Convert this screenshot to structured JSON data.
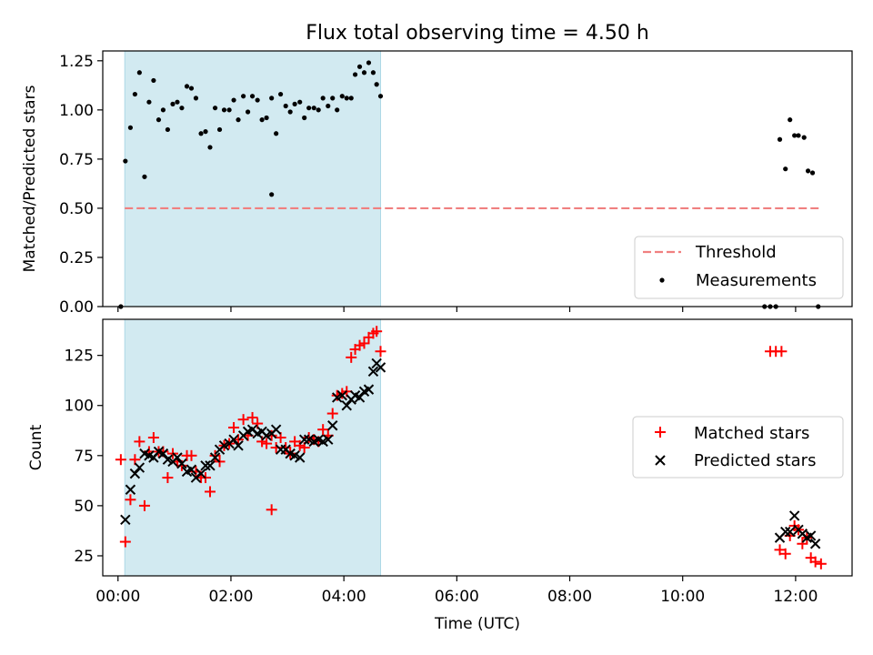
{
  "title": "Flux total observing time = 4.50 h",
  "colors": {
    "shade": "#add8e6",
    "threshold": "#f08080",
    "measurement": "#000000",
    "matched": "#ff0000",
    "predicted": "#000000"
  },
  "chart_data": [
    {
      "type": "scatter",
      "panel": "top",
      "ylabel": "Matched/Predicted stars",
      "xlim": [
        -0.27,
        13.0
      ],
      "ylim": [
        0.0,
        1.3
      ],
      "yticks": [
        0.0,
        0.25,
        0.5,
        0.75,
        1.0,
        1.25
      ],
      "ytick_labels": [
        "0.00",
        "0.25",
        "0.50",
        "0.75",
        "1.00",
        "1.25"
      ],
      "xticks": [
        0,
        2,
        4,
        6,
        8,
        10,
        12
      ],
      "shaded_region": [
        0.12,
        4.65
      ],
      "threshold": {
        "name": "Threshold",
        "value": 0.5,
        "x_range": [
          0.12,
          12.42
        ]
      },
      "legend": {
        "placement": "lower-right",
        "entries": [
          "Threshold",
          "Measurements"
        ]
      },
      "series": [
        {
          "name": "Measurements",
          "points": [
            [
              0.05,
              0.0
            ],
            [
              0.13,
              0.74
            ],
            [
              0.22,
              0.91
            ],
            [
              0.3,
              1.08
            ],
            [
              0.38,
              1.19
            ],
            [
              0.47,
              0.66
            ],
            [
              0.55,
              1.04
            ],
            [
              0.63,
              1.15
            ],
            [
              0.72,
              0.95
            ],
            [
              0.8,
              1.0
            ],
            [
              0.88,
              0.9
            ],
            [
              0.97,
              1.03
            ],
            [
              1.05,
              1.04
            ],
            [
              1.13,
              1.01
            ],
            [
              1.22,
              1.12
            ],
            [
              1.3,
              1.11
            ],
            [
              1.38,
              1.06
            ],
            [
              1.47,
              0.88
            ],
            [
              1.55,
              0.89
            ],
            [
              1.63,
              0.81
            ],
            [
              1.72,
              1.01
            ],
            [
              1.8,
              0.9
            ],
            [
              1.88,
              1.0
            ],
            [
              1.97,
              1.0
            ],
            [
              2.05,
              1.05
            ],
            [
              2.13,
              0.95
            ],
            [
              2.22,
              1.07
            ],
            [
              2.3,
              0.99
            ],
            [
              2.38,
              1.07
            ],
            [
              2.47,
              1.05
            ],
            [
              2.55,
              0.95
            ],
            [
              2.63,
              0.96
            ],
            [
              2.72,
              1.06
            ],
            [
              2.72,
              0.57
            ],
            [
              2.8,
              0.88
            ],
            [
              2.88,
              1.08
            ],
            [
              2.97,
              1.02
            ],
            [
              3.05,
              0.99
            ],
            [
              3.13,
              1.03
            ],
            [
              3.22,
              1.04
            ],
            [
              3.3,
              0.96
            ],
            [
              3.38,
              1.01
            ],
            [
              3.47,
              1.01
            ],
            [
              3.55,
              1.0
            ],
            [
              3.63,
              1.06
            ],
            [
              3.72,
              1.02
            ],
            [
              3.8,
              1.06
            ],
            [
              3.88,
              1.0
            ],
            [
              3.97,
              1.07
            ],
            [
              4.05,
              1.06
            ],
            [
              4.13,
              1.06
            ],
            [
              4.2,
              1.18
            ],
            [
              4.28,
              1.22
            ],
            [
              4.36,
              1.19
            ],
            [
              4.44,
              1.24
            ],
            [
              4.52,
              1.19
            ],
            [
              4.58,
              1.13
            ],
            [
              4.65,
              1.07
            ],
            [
              11.45,
              0.0
            ],
            [
              11.55,
              0.0
            ],
            [
              11.65,
              0.0
            ],
            [
              11.72,
              0.85
            ],
            [
              11.82,
              0.7
            ],
            [
              11.9,
              0.95
            ],
            [
              11.98,
              0.87
            ],
            [
              12.05,
              0.87
            ],
            [
              12.15,
              0.86
            ],
            [
              12.22,
              0.69
            ],
            [
              12.3,
              0.68
            ],
            [
              12.4,
              0.0
            ]
          ]
        }
      ]
    },
    {
      "type": "scatter",
      "panel": "bottom",
      "xlabel": "Time (UTC)",
      "ylabel": "Count",
      "xlim": [
        -0.27,
        13.0
      ],
      "ylim": [
        15,
        143
      ],
      "yticks": [
        25,
        50,
        75,
        100,
        125
      ],
      "ytick_labels": [
        "25",
        "50",
        "75",
        "100",
        "125"
      ],
      "xticks": [
        0,
        2,
        4,
        6,
        8,
        10,
        12
      ],
      "xtick_labels": [
        "00:00",
        "02:00",
        "04:00",
        "06:00",
        "08:00",
        "10:00",
        "12:00"
      ],
      "shaded_region": [
        0.12,
        4.65
      ],
      "legend": {
        "placement": "center-right",
        "entries": [
          "Matched stars",
          "Predicted stars"
        ]
      },
      "series": [
        {
          "name": "Matched stars",
          "marker": "plus",
          "points": [
            [
              0.05,
              73
            ],
            [
              0.13,
              32
            ],
            [
              0.22,
              53
            ],
            [
              0.3,
              73
            ],
            [
              0.38,
              82
            ],
            [
              0.47,
              50
            ],
            [
              0.55,
              77
            ],
            [
              0.63,
              84
            ],
            [
              0.72,
              77
            ],
            [
              0.8,
              77
            ],
            [
              0.88,
              64
            ],
            [
              0.97,
              76
            ],
            [
              1.05,
              72
            ],
            [
              1.13,
              70
            ],
            [
              1.22,
              75
            ],
            [
              1.3,
              75
            ],
            [
              1.38,
              67
            ],
            [
              1.47,
              64
            ],
            [
              1.55,
              64
            ],
            [
              1.63,
              57
            ],
            [
              1.72,
              75
            ],
            [
              1.8,
              72
            ],
            [
              1.88,
              80
            ],
            [
              1.97,
              81
            ],
            [
              2.05,
              89
            ],
            [
              2.13,
              83
            ],
            [
              2.22,
              93
            ],
            [
              2.3,
              85
            ],
            [
              2.38,
              94
            ],
            [
              2.47,
              91
            ],
            [
              2.55,
              82
            ],
            [
              2.63,
              81
            ],
            [
              2.72,
              48
            ],
            [
              2.72,
              85
            ],
            [
              2.8,
              79
            ],
            [
              2.88,
              84
            ],
            [
              2.97,
              79
            ],
            [
              3.05,
              76
            ],
            [
              3.13,
              82
            ],
            [
              3.22,
              80
            ],
            [
              3.3,
              79
            ],
            [
              3.38,
              84
            ],
            [
              3.47,
              83
            ],
            [
              3.55,
              82
            ],
            [
              3.63,
              88
            ],
            [
              3.72,
              85
            ],
            [
              3.8,
              96
            ],
            [
              3.88,
              105
            ],
            [
              3.97,
              106
            ],
            [
              4.05,
              107
            ],
            [
              4.13,
              124
            ],
            [
              4.2,
              128
            ],
            [
              4.28,
              130
            ],
            [
              4.36,
              131
            ],
            [
              4.44,
              134
            ],
            [
              4.52,
              136
            ],
            [
              4.58,
              137
            ],
            [
              4.65,
              127
            ],
            [
              11.55,
              127
            ],
            [
              11.65,
              127
            ],
            [
              11.75,
              127
            ],
            [
              11.72,
              28
            ],
            [
              11.82,
              26
            ],
            [
              11.9,
              35
            ],
            [
              11.98,
              40
            ],
            [
              12.05,
              38
            ],
            [
              12.12,
              31
            ],
            [
              12.2,
              34
            ],
            [
              12.27,
              24
            ],
            [
              12.35,
              22
            ],
            [
              12.45,
              21
            ]
          ]
        },
        {
          "name": "Predicted stars",
          "marker": "cross",
          "points": [
            [
              0.13,
              43
            ],
            [
              0.22,
              58
            ],
            [
              0.3,
              66
            ],
            [
              0.38,
              69
            ],
            [
              0.47,
              76
            ],
            [
              0.55,
              75
            ],
            [
              0.63,
              74
            ],
            [
              0.72,
              77
            ],
            [
              0.8,
              76
            ],
            [
              0.88,
              73
            ],
            [
              0.97,
              72
            ],
            [
              1.05,
              74
            ],
            [
              1.13,
              71
            ],
            [
              1.22,
              67
            ],
            [
              1.3,
              68
            ],
            [
              1.38,
              64
            ],
            [
              1.47,
              66
            ],
            [
              1.55,
              70
            ],
            [
              1.63,
              70
            ],
            [
              1.72,
              74
            ],
            [
              1.8,
              78
            ],
            [
              1.88,
              80
            ],
            [
              1.97,
              81
            ],
            [
              2.05,
              83
            ],
            [
              2.13,
              80
            ],
            [
              2.22,
              85
            ],
            [
              2.3,
              87
            ],
            [
              2.38,
              88
            ],
            [
              2.47,
              86
            ],
            [
              2.55,
              87
            ],
            [
              2.63,
              85
            ],
            [
              2.72,
              86
            ],
            [
              2.8,
              88
            ],
            [
              2.88,
              78
            ],
            [
              2.97,
              78
            ],
            [
              3.05,
              76
            ],
            [
              3.13,
              75
            ],
            [
              3.22,
              74
            ],
            [
              3.3,
              83
            ],
            [
              3.38,
              83
            ],
            [
              3.47,
              82
            ],
            [
              3.55,
              83
            ],
            [
              3.63,
              82
            ],
            [
              3.72,
              83
            ],
            [
              3.8,
              90
            ],
            [
              3.88,
              104
            ],
            [
              3.97,
              105
            ],
            [
              4.05,
              100
            ],
            [
              4.13,
              103
            ],
            [
              4.2,
              105
            ],
            [
              4.28,
              104
            ],
            [
              4.36,
              107
            ],
            [
              4.44,
              108
            ],
            [
              4.52,
              117
            ],
            [
              4.58,
              121
            ],
            [
              4.65,
              119
            ],
            [
              11.72,
              34
            ],
            [
              11.82,
              37
            ],
            [
              11.9,
              37
            ],
            [
              11.98,
              45
            ],
            [
              12.05,
              38
            ],
            [
              12.12,
              36
            ],
            [
              12.2,
              34
            ],
            [
              12.27,
              35
            ],
            [
              12.35,
              31
            ]
          ]
        }
      ]
    }
  ]
}
